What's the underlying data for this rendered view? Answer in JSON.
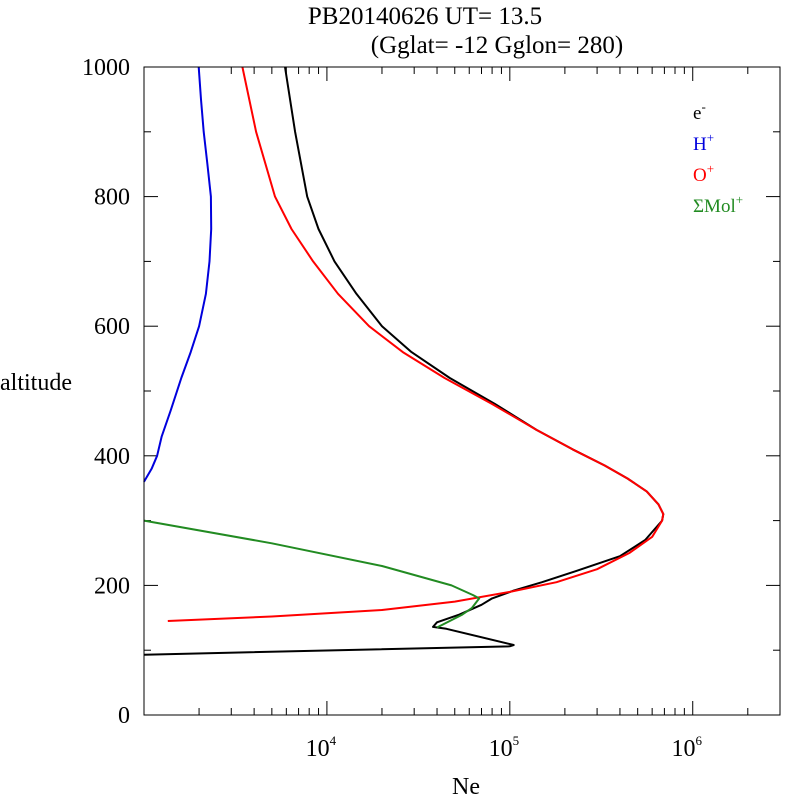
{
  "chart_data": {
    "type": "line",
    "title_line1": "PB20140626   UT=  13.5",
    "title_line2": "(Gglat= -12   Gglon=  280)",
    "xlabel": "Ne",
    "ylabel": "altitude",
    "x_scale": "log",
    "xlim": [
      1000,
      3000000
    ],
    "ylim": [
      0,
      1000
    ],
    "x_tick_labels": [
      {
        "value": 10000,
        "base": "10",
        "exp": "4"
      },
      {
        "value": 100000,
        "base": "10",
        "exp": "5"
      },
      {
        "value": 1000000,
        "base": "10",
        "exp": "6"
      }
    ],
    "y_ticks": [
      0,
      200,
      400,
      600,
      800,
      1000
    ],
    "y_tick_labels": [
      "0",
      "200",
      "400",
      "600",
      "800",
      "1000"
    ],
    "legend_position": "top-right",
    "series": [
      {
        "name": "e-",
        "label_base": "e",
        "label_sup": "-",
        "color": "#000000",
        "points": [
          [
            1000,
            93
          ],
          [
            100000,
            106
          ],
          [
            105000,
            108
          ],
          [
            45000,
            133
          ],
          [
            38000,
            136
          ],
          [
            40000,
            143
          ],
          [
            53000,
            155
          ],
          [
            70000,
            170
          ],
          [
            80000,
            180
          ],
          [
            105000,
            192
          ],
          [
            150000,
            205
          ],
          [
            230000,
            222
          ],
          [
            400000,
            245
          ],
          [
            550000,
            270
          ],
          [
            680000,
            300
          ],
          [
            690000,
            310
          ],
          [
            650000,
            325
          ],
          [
            560000,
            345
          ],
          [
            440000,
            365
          ],
          [
            330000,
            385
          ],
          [
            220000,
            410
          ],
          [
            140000,
            440
          ],
          [
            83000,
            480
          ],
          [
            47000,
            520
          ],
          [
            29000,
            560
          ],
          [
            20000,
            600
          ],
          [
            14500,
            650
          ],
          [
            11000,
            700
          ],
          [
            9000,
            750
          ],
          [
            7800,
            800
          ],
          [
            6700,
            900
          ],
          [
            5900,
            1000
          ]
        ]
      },
      {
        "name": "H+",
        "label_base": "H",
        "label_sup": "+",
        "color": "#0000dd",
        "points": [
          [
            1000,
            360
          ],
          [
            1100,
            380
          ],
          [
            1180,
            400
          ],
          [
            1250,
            430
          ],
          [
            1400,
            470
          ],
          [
            1600,
            520
          ],
          [
            1800,
            560
          ],
          [
            2000,
            600
          ],
          [
            2180,
            650
          ],
          [
            2280,
            700
          ],
          [
            2330,
            750
          ],
          [
            2320,
            800
          ],
          [
            2220,
            850
          ],
          [
            2120,
            900
          ],
          [
            2050,
            950
          ],
          [
            1990,
            1000
          ]
        ]
      },
      {
        "name": "O+",
        "label_base": "O",
        "label_sup": "+",
        "color": "#ff0000",
        "points": [
          [
            1350,
            145
          ],
          [
            5000,
            152
          ],
          [
            20000,
            162
          ],
          [
            50000,
            175
          ],
          [
            100000,
            190
          ],
          [
            180000,
            205
          ],
          [
            300000,
            225
          ],
          [
            450000,
            250
          ],
          [
            600000,
            275
          ],
          [
            680000,
            300
          ],
          [
            690000,
            310
          ],
          [
            650000,
            325
          ],
          [
            560000,
            345
          ],
          [
            440000,
            365
          ],
          [
            330000,
            385
          ],
          [
            220000,
            410
          ],
          [
            140000,
            440
          ],
          [
            80000,
            480
          ],
          [
            44000,
            520
          ],
          [
            26000,
            560
          ],
          [
            17000,
            600
          ],
          [
            11500,
            650
          ],
          [
            8400,
            700
          ],
          [
            6400,
            750
          ],
          [
            5200,
            800
          ],
          [
            4100,
            900
          ],
          [
            3450,
            1000
          ]
        ]
      },
      {
        "name": "ΣMol+",
        "label_base": "ΣMol",
        "label_sup": "+",
        "color": "#228b22",
        "points": [
          [
            40000,
            135
          ],
          [
            55000,
            155
          ],
          [
            62000,
            165
          ],
          [
            68000,
            180
          ],
          [
            63000,
            185
          ],
          [
            48000,
            200
          ],
          [
            20000,
            230
          ],
          [
            5000,
            265
          ],
          [
            1000,
            300
          ]
        ]
      }
    ]
  }
}
